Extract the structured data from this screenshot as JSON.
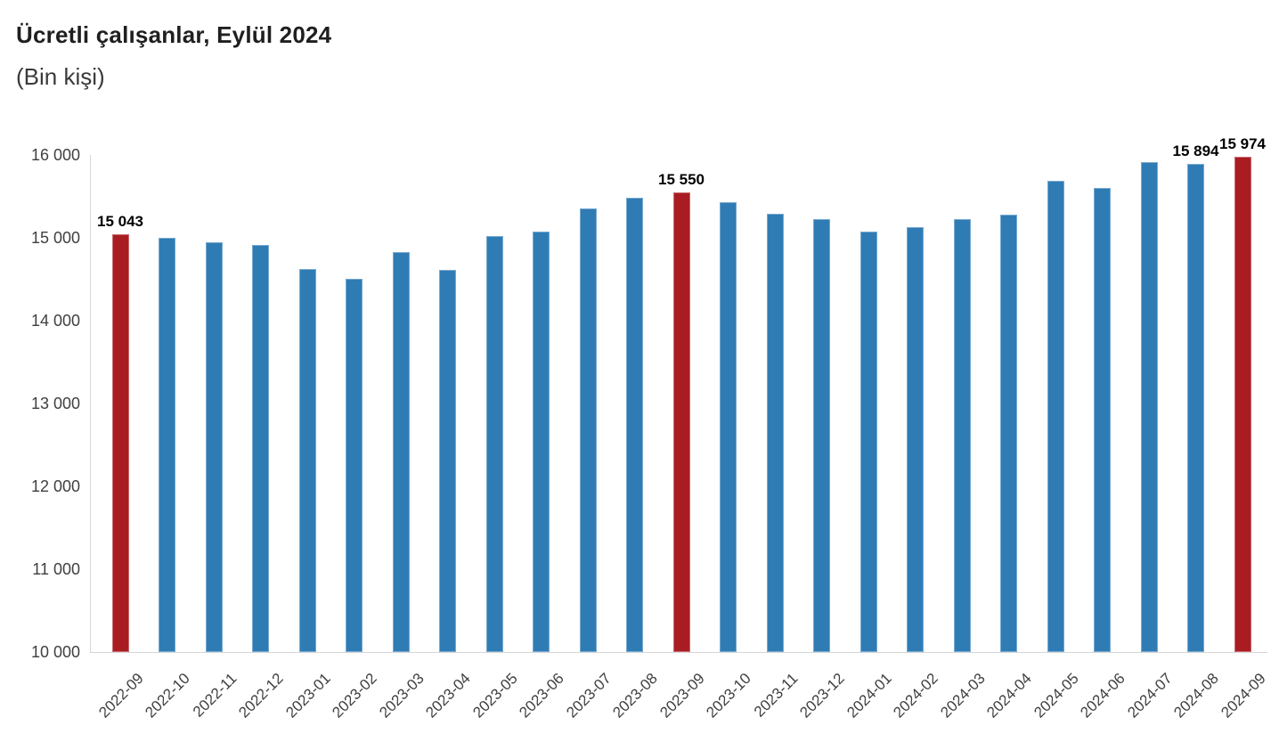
{
  "title": "Ücretli çalışanlar, Eylül 2024",
  "subtitle": "(Bin kişi)",
  "colors": {
    "bar": "#2F7CB5",
    "bar_highlight": "#A91D22",
    "axis_line": "#D6D6D6",
    "tick_text": "#3F3F3F",
    "title_text": "#1F1F1F",
    "subtitle_text": "#3A3A3A",
    "data_label_text": "#000000"
  },
  "chart_data": {
    "type": "bar",
    "title": "Ücretli çalışanlar, Eylül 2024",
    "subtitle": "(Bin kişi)",
    "unit": "Bin kişi",
    "categories": [
      "2022-09",
      "2022-10",
      "2022-11",
      "2022-12",
      "2023-01",
      "2023-02",
      "2023-03",
      "2023-04",
      "2023-05",
      "2023-06",
      "2023-07",
      "2023-08",
      "2023-09",
      "2023-10",
      "2023-11",
      "2023-12",
      "2024-01",
      "2024-02",
      "2024-03",
      "2024-04",
      "2024-05",
      "2024-06",
      "2024-07",
      "2024-08",
      "2024-09"
    ],
    "values": [
      15043,
      15000,
      14950,
      14910,
      14620,
      14510,
      14830,
      14610,
      15020,
      15070,
      15360,
      15480,
      15550,
      15430,
      15290,
      15230,
      15080,
      15130,
      15230,
      15280,
      15690,
      15600,
      15910,
      15894,
      15974
    ],
    "highlighted_categories": [
      "2022-09",
      "2023-09",
      "2024-09"
    ],
    "data_labels": [
      {
        "category": "2022-09",
        "text": "15 043"
      },
      {
        "category": "2023-09",
        "text": "15 550"
      },
      {
        "category": "2024-08",
        "text": "15 894"
      },
      {
        "category": "2024-09",
        "text": "15 974"
      }
    ],
    "ylim": [
      10000,
      16000
    ],
    "yticks": [
      10000,
      11000,
      12000,
      13000,
      14000,
      15000,
      16000
    ],
    "ytick_labels": [
      "10 000",
      "11 000",
      "12 000",
      "13 000",
      "14 000",
      "15 000",
      "16 000"
    ],
    "xlabel": "",
    "ylabel": "",
    "grid": false,
    "legend": false
  }
}
